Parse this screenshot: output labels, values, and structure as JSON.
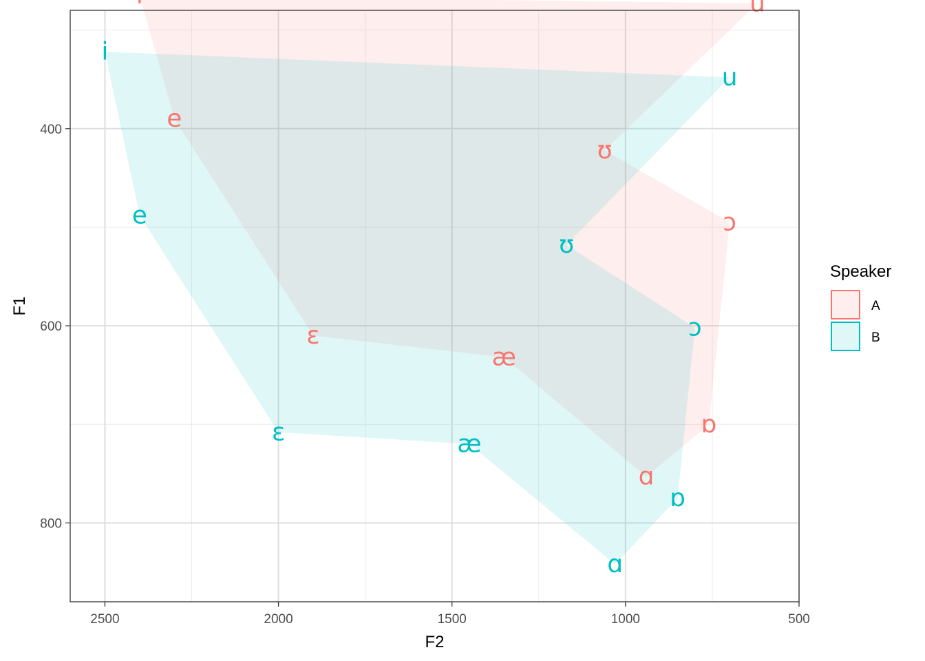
{
  "chart_data": {
    "type": "scatter",
    "title": "",
    "xlabel": "F2",
    "ylabel": "F1",
    "x_reversed": true,
    "y_reversed": true,
    "xlim": [
      2600,
      500
    ],
    "ylim": [
      280,
      880
    ],
    "x_ticks": [
      2500,
      2000,
      1500,
      1000,
      500
    ],
    "y_ticks": [
      400,
      600,
      800
    ],
    "grid": true,
    "legend": {
      "title": "Speaker",
      "position": "right"
    },
    "series": [
      {
        "name": "A",
        "color": "#F8766D",
        "fill": "#FDE8E6",
        "points": [
          {
            "label": "i",
            "F2": 2400,
            "F1": 265
          },
          {
            "label": "e",
            "F2": 2300,
            "F1": 390
          },
          {
            "label": "ɛ",
            "F2": 1900,
            "F1": 610
          },
          {
            "label": "æ",
            "F2": 1350,
            "F1": 632
          },
          {
            "label": "ɑ",
            "F2": 940,
            "F1": 753
          },
          {
            "label": "ɒ",
            "F2": 760,
            "F1": 700
          },
          {
            "label": "ɔ",
            "F2": 700,
            "F1": 495
          },
          {
            "label": "ʊ",
            "F2": 1060,
            "F1": 422
          },
          {
            "label": "u",
            "F2": 620,
            "F1": 273
          }
        ]
      },
      {
        "name": "B",
        "color": "#00BFC4",
        "fill": "#E0F4F5",
        "points": [
          {
            "label": "i",
            "F2": 2500,
            "F1": 322
          },
          {
            "label": "e",
            "F2": 2400,
            "F1": 488
          },
          {
            "label": "ɛ",
            "F2": 2000,
            "F1": 708
          },
          {
            "label": "æ",
            "F2": 1450,
            "F1": 720
          },
          {
            "label": "ɑ",
            "F2": 1030,
            "F1": 842
          },
          {
            "label": "ɒ",
            "F2": 850,
            "F1": 775
          },
          {
            "label": "ɔ",
            "F2": 800,
            "F1": 602
          },
          {
            "label": "ʊ",
            "F2": 1170,
            "F1": 518
          },
          {
            "label": "u",
            "F2": 700,
            "F1": 348
          }
        ]
      }
    ]
  }
}
